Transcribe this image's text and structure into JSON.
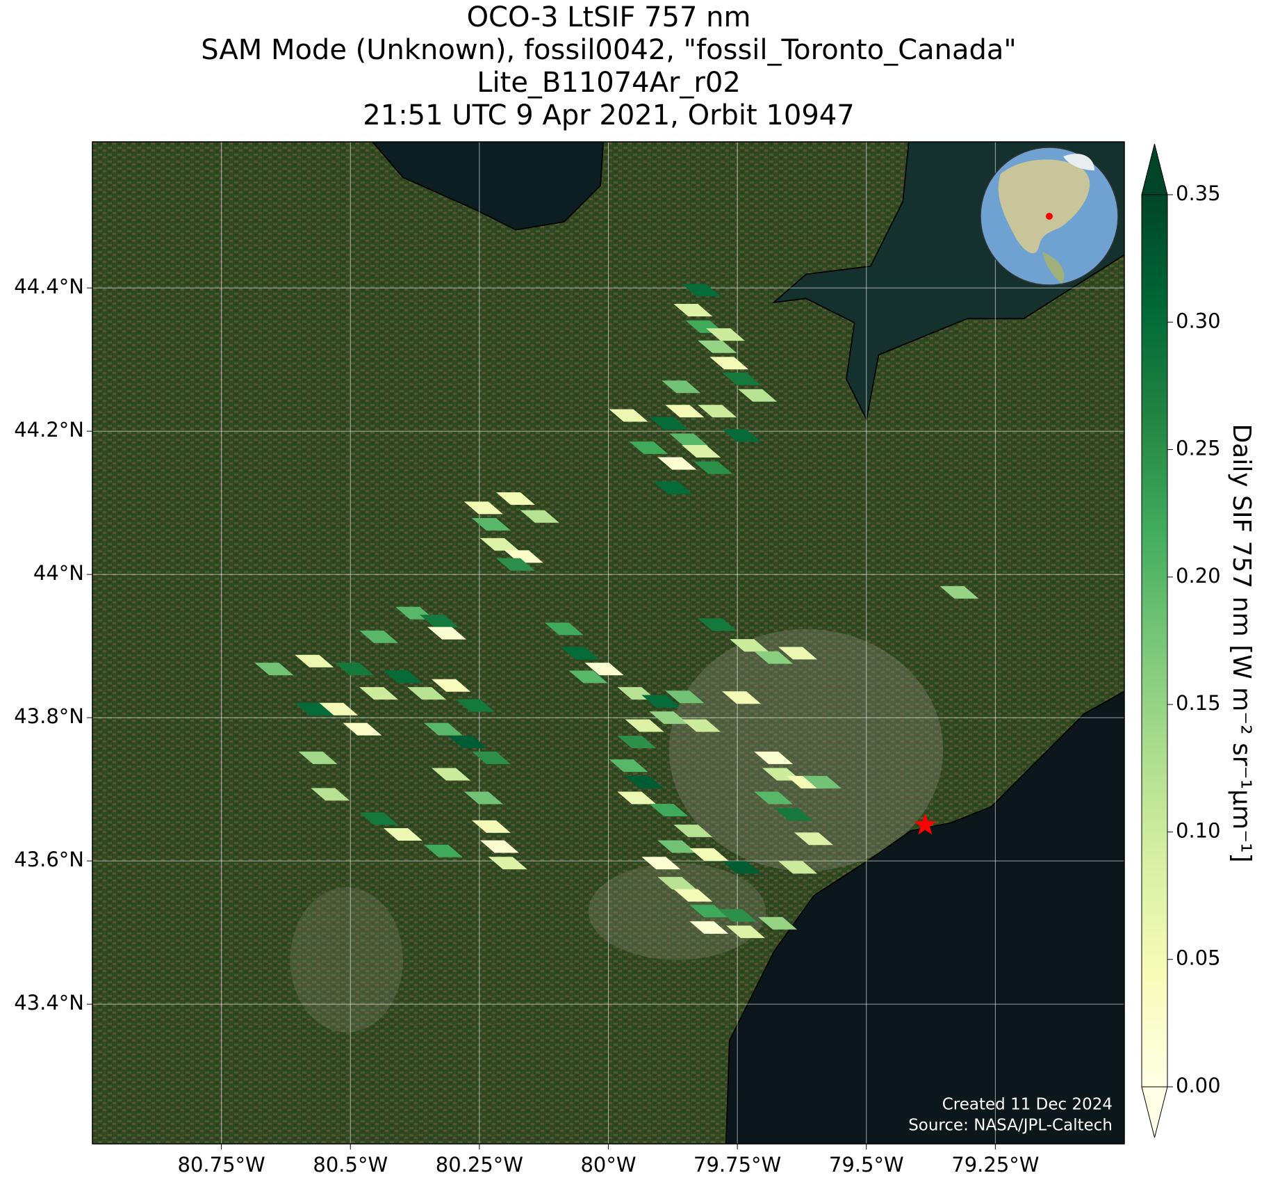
{
  "chart_data": {
    "type": "map",
    "title": [
      "OCO-3 LtSIF 757 nm",
      "SAM Mode (Unknown), fossil0042, \"fossil_Toronto_Canada\"",
      "Lite_B11074Ar_r02",
      "21:51 UTC 9 Apr 2021, Orbit 10947"
    ],
    "notes": [
      "Created 11 Dec 2024",
      "Source: NASA/JPL-Caltech"
    ],
    "xlim": [
      -81,
      -79
    ],
    "ylim": [
      43.205,
      44.604
    ],
    "xticks": [
      {
        "value": -80.75,
        "label": "80.75°W"
      },
      {
        "value": -80.5,
        "label": "80.5°W"
      },
      {
        "value": -80.25,
        "label": "80.25°W"
      },
      {
        "value": -80,
        "label": "80°W"
      },
      {
        "value": -79.75,
        "label": "79.75°W"
      },
      {
        "value": -79.5,
        "label": "79.5°W"
      },
      {
        "value": -79.25,
        "label": "79.25°W"
      }
    ],
    "yticks": [
      {
        "value": 43.4,
        "label": "43.4°N"
      },
      {
        "value": 43.6,
        "label": "43.6°N"
      },
      {
        "value": 43.8,
        "label": "43.8°N"
      },
      {
        "value": 44,
        "label": "44°N"
      },
      {
        "value": 44.2,
        "label": "44.2°N"
      },
      {
        "value": 44.4,
        "label": "44.4°N"
      }
    ],
    "grid": true,
    "colorbar": {
      "label": "Daily SIF 757 nm [W m⁻² sr⁻¹μm⁻¹]",
      "lim": [
        0,
        0.35
      ],
      "extend": "both",
      "ticks": [
        {
          "value": 0,
          "label": "0.00"
        },
        {
          "value": 0.05,
          "label": "0.05"
        },
        {
          "value": 0.1,
          "label": "0.10"
        },
        {
          "value": 0.15,
          "label": "0.15"
        },
        {
          "value": 0.2,
          "label": "0.20"
        },
        {
          "value": 0.25,
          "label": "0.25"
        },
        {
          "value": 0.3,
          "label": "0.30"
        },
        {
          "value": 0.35,
          "label": "0.35"
        }
      ]
    },
    "target": {
      "lon": -79.386,
      "lat": 43.65
    },
    "lon": [
      -79.82,
      -79.836,
      -79.813,
      -79.789,
      -79.766,
      -79.742,
      -79.711,
      -79.773,
      -79.859,
      -79.852,
      -79.883,
      -79.844,
      -79.82,
      -79.797,
      -79.961,
      -79.922,
      -79.867,
      -79.875,
      -79.789,
      -80.242,
      -80.227,
      -80.18,
      -80.133,
      -80.211,
      -80.164,
      -80.18,
      -80.375,
      -80.328,
      -80.313,
      -80.445,
      -80.648,
      -80.57,
      -80.492,
      -80.445,
      -80.398,
      -80.352,
      -80.305,
      -80.258,
      -80.523,
      -80.57,
      -80.563,
      -80.477,
      -80.32,
      -80.273,
      -80.227,
      -80.305,
      -80.242,
      -80.539,
      -80.445,
      -80.398,
      -80.32,
      -80.227,
      -80.211,
      -80.195,
      -80.086,
      -80.055,
      -80.008,
      -80.039,
      -79.945,
      -79.898,
      -79.852,
      -79.93,
      -79.883,
      -79.82,
      -79.945,
      -79.961,
      -79.93,
      -79.945,
      -79.883,
      -79.836,
      -79.867,
      -79.805,
      -79.898,
      -79.789,
      -79.727,
      -79.68,
      -79.633,
      -79.742,
      -79.68,
      -79.664,
      -79.617,
      -79.68,
      -79.641,
      -79.602,
      -79.586,
      -79.867,
      -79.836,
      -79.805,
      -79.75,
      -79.805,
      -79.734,
      -79.672,
      -79.633,
      -79.742,
      -79.32,
      -79.742
    ],
    "lat": [
      44.397,
      44.369,
      44.346,
      44.318,
      44.295,
      44.273,
      44.25,
      44.335,
      44.262,
      44.228,
      44.211,
      44.188,
      44.172,
      44.149,
      44.222,
      44.177,
      44.155,
      44.121,
      44.228,
      44.093,
      44.07,
      44.106,
      44.081,
      44.042,
      44.025,
      44.014,
      43.946,
      43.935,
      43.918,
      43.913,
      43.868,
      43.879,
      43.868,
      43.834,
      43.857,
      43.834,
      43.845,
      43.817,
      43.812,
      43.812,
      43.744,
      43.784,
      43.784,
      43.766,
      43.744,
      43.721,
      43.688,
      43.693,
      43.659,
      43.637,
      43.614,
      43.648,
      43.62,
      43.597,
      43.924,
      43.89,
      43.868,
      43.857,
      43.834,
      43.823,
      43.829,
      43.789,
      43.8,
      43.789,
      43.766,
      43.733,
      43.71,
      43.688,
      43.671,
      43.642,
      43.62,
      43.609,
      43.597,
      43.93,
      43.901,
      43.884,
      43.89,
      43.828,
      43.744,
      43.721,
      43.71,
      43.688,
      43.665,
      43.631,
      43.71,
      43.569,
      43.552,
      43.53,
      43.524,
      43.507,
      43.501,
      43.513,
      43.591,
      43.591,
      43.975,
      44.194
    ],
    "values": [
      0.3,
      0.08,
      0.22,
      0.15,
      0.05,
      0.28,
      0.12,
      0.1,
      0.18,
      0.05,
      0.3,
      0.2,
      0.08,
      0.25,
      0.06,
      0.22,
      0.02,
      0.3,
      0.1,
      0.05,
      0.2,
      0.05,
      0.12,
      0.08,
      0.03,
      0.25,
      0.2,
      0.28,
      0.02,
      0.2,
      0.18,
      0.06,
      0.28,
      0.1,
      0.3,
      0.12,
      0.04,
      0.28,
      0.05,
      0.3,
      0.14,
      0.03,
      0.2,
      0.32,
      0.25,
      0.1,
      0.18,
      0.12,
      0.28,
      0.06,
      0.22,
      0.05,
      0.02,
      0.08,
      0.22,
      0.3,
      0.02,
      0.2,
      0.12,
      0.3,
      0.18,
      0.08,
      0.15,
      0.1,
      0.25,
      0.2,
      0.32,
      0.06,
      0.22,
      0.12,
      0.18,
      0.05,
      0.02,
      0.28,
      0.1,
      0.16,
      0.06,
      0.05,
      0.02,
      0.1,
      0.05,
      0.2,
      0.28,
      0.08,
      0.18,
      0.12,
      0.05,
      0.22,
      0.25,
      0.02,
      0.08,
      0.15,
      0.1,
      0.32,
      0.15,
      0.3
    ]
  }
}
